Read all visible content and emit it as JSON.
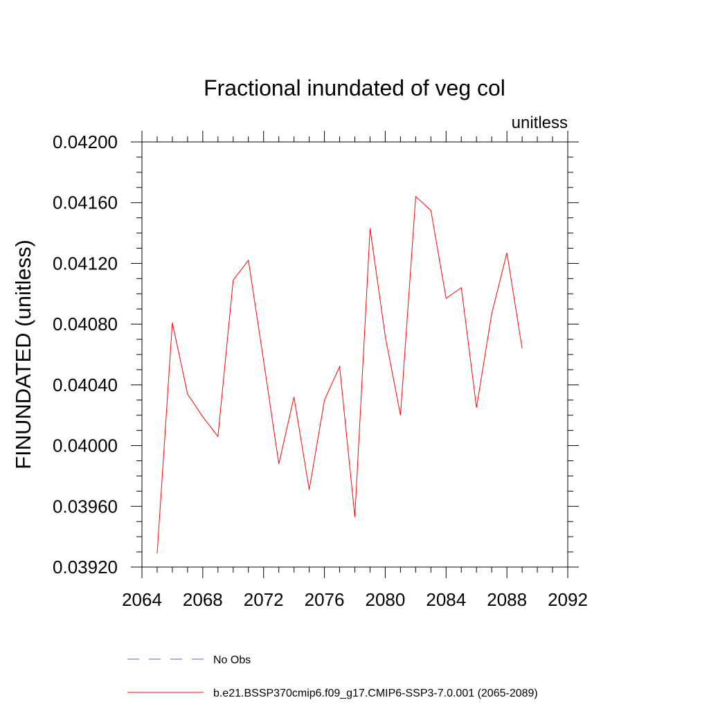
{
  "chart_data": {
    "type": "line",
    "title": "Fractional inundated of veg col",
    "units_label": "unitless",
    "ylabel": "FINUNDATED  (unitless)",
    "xlabel": "",
    "xlim": [
      2064,
      2092
    ],
    "ylim": [
      0.0392,
      0.042
    ],
    "x_ticks": [
      "2064",
      "2068",
      "2072",
      "2076",
      "2080",
      "2084",
      "2088",
      "2092"
    ],
    "y_ticks": [
      "0.03920",
      "0.03960",
      "0.04000",
      "0.04040",
      "0.04080",
      "0.04120",
      "0.04160",
      "0.04200"
    ],
    "grid": false,
    "legend_position": "bottom",
    "series": [
      {
        "name": "b.e21.BSSP370cmip6.f09_g17.CMIP6-SSP3-7.0.001 (2065-2089)",
        "color": "#ff0000",
        "style": "solid",
        "x": [
          2065,
          2066,
          2067,
          2068,
          2069,
          2070,
          2071,
          2072,
          2073,
          2074,
          2075,
          2076,
          2077,
          2078,
          2079,
          2080,
          2081,
          2082,
          2083,
          2084,
          2085,
          2086,
          2087,
          2088,
          2089
        ],
        "values": [
          0.03929,
          0.04081,
          0.04034,
          0.04019,
          0.04006,
          0.04109,
          0.04122,
          0.04056,
          0.03988,
          0.04032,
          0.03971,
          0.0403,
          0.04052,
          0.03953,
          0.04143,
          0.04072,
          0.0402,
          0.04164,
          0.04155,
          0.04097,
          0.04104,
          0.04025,
          0.04087,
          0.04127,
          0.04064
        ]
      }
    ],
    "legend": [
      {
        "label": "No Obs",
        "color": "#6a5acd",
        "style": "dashed"
      },
      {
        "label": "b.e21.BSSP370cmip6.f09_g17.CMIP6-SSP3-7.0.001 (2065-2089)",
        "color": "#ff0000",
        "style": "solid"
      }
    ]
  }
}
